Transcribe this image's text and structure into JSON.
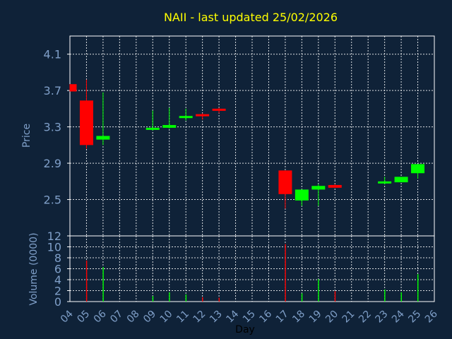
{
  "colors": {
    "background": "#0f2238",
    "plot_border": "#ffffff",
    "grid": "#ffffff",
    "axis_text": "#7f9fc8",
    "title": "#ffff00",
    "up": "#00ff00",
    "down": "#ff0000"
  },
  "chart_data": [
    {
      "type": "candlestick",
      "title": "NAII - last updated 25/02/2026",
      "ylabel": "Price",
      "ylim": [
        2.1,
        4.3
      ],
      "yticks": [
        2.5,
        2.9,
        3.3,
        3.7,
        4.1
      ],
      "ytick_labels": [
        "2.5",
        "2.9",
        "3.3",
        "3.7",
        "4.1"
      ],
      "grid": true,
      "x_domain": [
        4,
        26
      ],
      "candles": [
        {
          "day": 4,
          "open": 3.77,
          "high": 3.77,
          "low": 3.69,
          "close": 3.69
        },
        {
          "day": 5,
          "open": 3.59,
          "high": 3.82,
          "low": 3.06,
          "close": 3.1
        },
        {
          "day": 6,
          "open": 3.16,
          "high": 3.68,
          "low": 3.1,
          "close": 3.2
        },
        {
          "day": 9,
          "open": 3.27,
          "high": 3.48,
          "low": 3.26,
          "close": 3.29
        },
        {
          "day": 10,
          "open": 3.29,
          "high": 3.51,
          "low": 3.28,
          "close": 3.32
        },
        {
          "day": 11,
          "open": 3.41,
          "high": 3.5,
          "low": 3.37,
          "close": 3.42
        },
        {
          "day": 12,
          "open": 3.44,
          "high": 3.45,
          "low": 3.38,
          "close": 3.42
        },
        {
          "day": 13,
          "open": 3.5,
          "high": 3.51,
          "low": 3.45,
          "close": 3.48
        },
        {
          "day": 17,
          "open": 2.82,
          "high": 2.82,
          "low": 2.4,
          "close": 2.56
        },
        {
          "day": 18,
          "open": 2.49,
          "high": 2.61,
          "low": 2.43,
          "close": 2.61
        },
        {
          "day": 19,
          "open": 2.61,
          "high": 2.67,
          "low": 2.43,
          "close": 2.65
        },
        {
          "day": 20,
          "open": 2.66,
          "high": 2.67,
          "low": 2.63,
          "close": 2.63
        },
        {
          "day": 23,
          "open": 2.69,
          "high": 2.75,
          "low": 2.67,
          "close": 2.7
        },
        {
          "day": 24,
          "open": 2.69,
          "high": 2.75,
          "low": 2.69,
          "close": 2.75
        },
        {
          "day": 25,
          "open": 2.79,
          "high": 2.89,
          "low": 2.73,
          "close": 2.89
        }
      ]
    },
    {
      "type": "bar",
      "ylabel": "Volume (0000)",
      "xlabel": "Day",
      "ylim": [
        0,
        12
      ],
      "yticks": [
        0,
        2,
        4,
        6,
        8,
        10,
        12
      ],
      "ytick_labels": [
        "0",
        "2",
        "4",
        "6",
        "8",
        "10",
        "12"
      ],
      "grid": true,
      "x_domain": [
        4,
        26
      ],
      "xticks": [
        4,
        5,
        6,
        7,
        8,
        9,
        10,
        11,
        12,
        13,
        14,
        15,
        16,
        17,
        18,
        19,
        20,
        21,
        22,
        23,
        24,
        25,
        26
      ],
      "xtick_labels": [
        "04",
        "05",
        "06",
        "07",
        "08",
        "09",
        "10",
        "11",
        "12",
        "13",
        "14",
        "15",
        "16",
        "17",
        "18",
        "19",
        "20",
        "21",
        "22",
        "23",
        "24",
        "25",
        "26"
      ],
      "bars": [
        {
          "day": 5,
          "value": 7.5,
          "direction": "down"
        },
        {
          "day": 6,
          "value": 6.3,
          "direction": "up"
        },
        {
          "day": 9,
          "value": 1.0,
          "direction": "up"
        },
        {
          "day": 10,
          "value": 1.7,
          "direction": "up"
        },
        {
          "day": 11,
          "value": 1.3,
          "direction": "up"
        },
        {
          "day": 12,
          "value": 0.8,
          "direction": "down"
        },
        {
          "day": 13,
          "value": 0.7,
          "direction": "down"
        },
        {
          "day": 17,
          "value": 10.5,
          "direction": "down"
        },
        {
          "day": 18,
          "value": 1.5,
          "direction": "up"
        },
        {
          "day": 19,
          "value": 4.1,
          "direction": "up"
        },
        {
          "day": 20,
          "value": 1.9,
          "direction": "down"
        },
        {
          "day": 23,
          "value": 2.2,
          "direction": "up"
        },
        {
          "day": 24,
          "value": 1.7,
          "direction": "up"
        },
        {
          "day": 25,
          "value": 5.0,
          "direction": "up"
        }
      ]
    }
  ]
}
